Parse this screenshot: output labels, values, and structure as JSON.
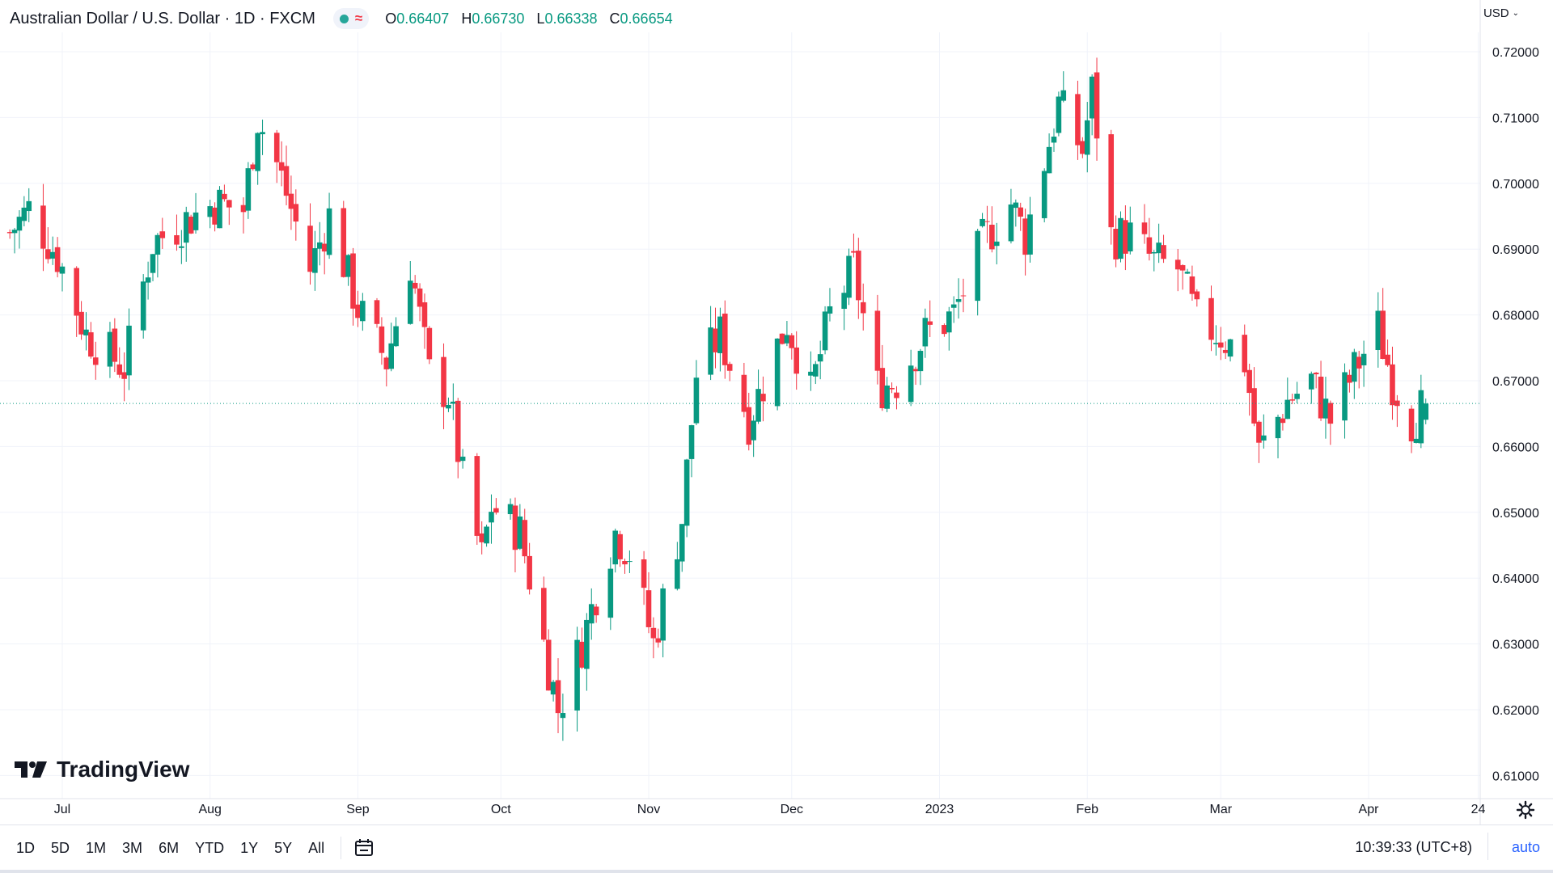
{
  "header": {
    "symbol_title": "Australian Dollar / U.S. Dollar · 1D · FXCM",
    "ohlc": {
      "o_label": "O",
      "o": "0.66407",
      "h_label": "H",
      "h": "0.66730",
      "l_label": "L",
      "l": "0.66338",
      "c_label": "C",
      "c": "0.66654"
    },
    "wave_glyph": "≈",
    "currency": "USD"
  },
  "brand": "TradingView",
  "bottom_bar": {
    "ranges": [
      "1D",
      "5D",
      "1M",
      "3M",
      "6M",
      "YTD",
      "1Y",
      "5Y",
      "All"
    ],
    "time": "10:39:33 (UTC+8)",
    "scale_mode": "auto"
  },
  "colors": {
    "up": "#089981",
    "down": "#f23645",
    "grid": "#f0f3fa",
    "axis_text": "#131722"
  },
  "chart_data": {
    "type": "candlestick",
    "title": "Australian Dollar / U.S. Dollar · 1D · FXCM",
    "ylim": [
      0.605,
      0.725
    ],
    "y_ticks": [
      "0.72000",
      "0.71000",
      "0.70000",
      "0.69000",
      "0.68000",
      "0.67000",
      "0.66000",
      "0.65000",
      "0.64000",
      "0.63000",
      "0.62000",
      "0.61000"
    ],
    "y_tick_values": [
      0.72,
      0.71,
      0.7,
      0.69,
      0.68,
      0.67,
      0.66,
      0.65,
      0.64,
      0.63,
      0.62,
      0.61
    ],
    "x_start": "2022-06-20",
    "x_end": "2023-04-26",
    "x_ticks": [
      {
        "label": "Jul",
        "date": "2022-07-01"
      },
      {
        "label": "Aug",
        "date": "2022-08-01"
      },
      {
        "label": "Sep",
        "date": "2022-09-01"
      },
      {
        "label": "Oct",
        "date": "2022-10-01"
      },
      {
        "label": "Nov",
        "date": "2022-11-01"
      },
      {
        "label": "Dec",
        "date": "2022-12-01"
      },
      {
        "label": "2023",
        "date": "2023-01-01"
      },
      {
        "label": "Feb",
        "date": "2023-02-01"
      },
      {
        "label": "Mar",
        "date": "2023-03-01"
      },
      {
        "label": "Apr",
        "date": "2023-04-01"
      },
      {
        "label": "24",
        "date": "2023-04-24"
      }
    ],
    "last_price": 0.66654,
    "grid": true,
    "close_path": [
      [
        "2022-06-20",
        0.6925
      ],
      [
        "2022-06-24",
        0.696
      ],
      [
        "2022-06-30",
        0.689
      ],
      [
        "2022-07-06",
        0.677
      ],
      [
        "2022-07-11",
        0.674
      ],
      [
        "2022-07-14",
        0.672
      ],
      [
        "2022-07-20",
        0.691
      ],
      [
        "2022-07-26",
        0.694
      ],
      [
        "2022-08-02",
        0.697
      ],
      [
        "2022-08-08",
        0.696
      ],
      [
        "2022-08-11",
        0.71
      ],
      [
        "2022-08-15",
        0.703
      ],
      [
        "2022-08-22",
        0.687
      ],
      [
        "2022-08-26",
        0.695
      ],
      [
        "2022-09-01",
        0.681
      ],
      [
        "2022-09-07",
        0.673
      ],
      [
        "2022-09-12",
        0.688
      ],
      [
        "2022-09-16",
        0.671
      ],
      [
        "2022-09-20",
        0.668
      ],
      [
        "2022-09-23",
        0.655
      ],
      [
        "2022-09-27",
        0.643
      ],
      [
        "2022-09-29",
        0.651
      ],
      [
        "2022-10-05",
        0.647
      ],
      [
        "2022-10-10",
        0.63
      ],
      [
        "2022-10-13",
        0.62
      ],
      [
        "2022-10-18",
        0.63
      ],
      [
        "2022-10-21",
        0.638
      ],
      [
        "2022-10-25",
        0.647
      ],
      [
        "2022-10-28",
        0.644
      ],
      [
        "2022-11-02",
        0.63
      ],
      [
        "2022-11-08",
        0.649
      ],
      [
        "2022-11-11",
        0.671
      ],
      [
        "2022-11-16",
        0.677
      ],
      [
        "2022-11-22",
        0.664
      ],
      [
        "2022-11-30",
        0.679
      ],
      [
        "2022-12-05",
        0.668
      ],
      [
        "2022-12-09",
        0.68
      ],
      [
        "2022-12-14",
        0.687
      ],
      [
        "2022-12-19",
        0.669
      ],
      [
        "2022-12-23",
        0.67
      ],
      [
        "2022-12-29",
        0.677
      ],
      [
        "2023-01-04",
        0.68
      ],
      [
        "2023-01-10",
        0.691
      ],
      [
        "2023-01-16",
        0.697
      ],
      [
        "2023-01-19",
        0.692
      ],
      [
        "2023-01-26",
        0.712
      ],
      [
        "2023-01-31",
        0.705
      ],
      [
        "2023-02-02",
        0.714
      ],
      [
        "2023-02-06",
        0.692
      ],
      [
        "2023-02-10",
        0.692
      ],
      [
        "2023-02-15",
        0.688
      ],
      [
        "2023-02-20",
        0.687
      ],
      [
        "2023-02-24",
        0.679
      ],
      [
        "2023-03-01",
        0.677
      ],
      [
        "2023-03-06",
        0.673
      ],
      [
        "2023-03-09",
        0.659
      ],
      [
        "2023-03-15",
        0.667
      ],
      [
        "2023-03-20",
        0.67
      ],
      [
        "2023-03-24",
        0.664
      ],
      [
        "2023-03-28",
        0.67
      ],
      [
        "2023-03-30",
        0.673
      ],
      [
        "2023-04-03",
        0.678
      ],
      [
        "2023-04-06",
        0.67
      ],
      [
        "2023-04-10",
        0.664
      ],
      [
        "2023-04-13",
        0.6665
      ]
    ]
  }
}
